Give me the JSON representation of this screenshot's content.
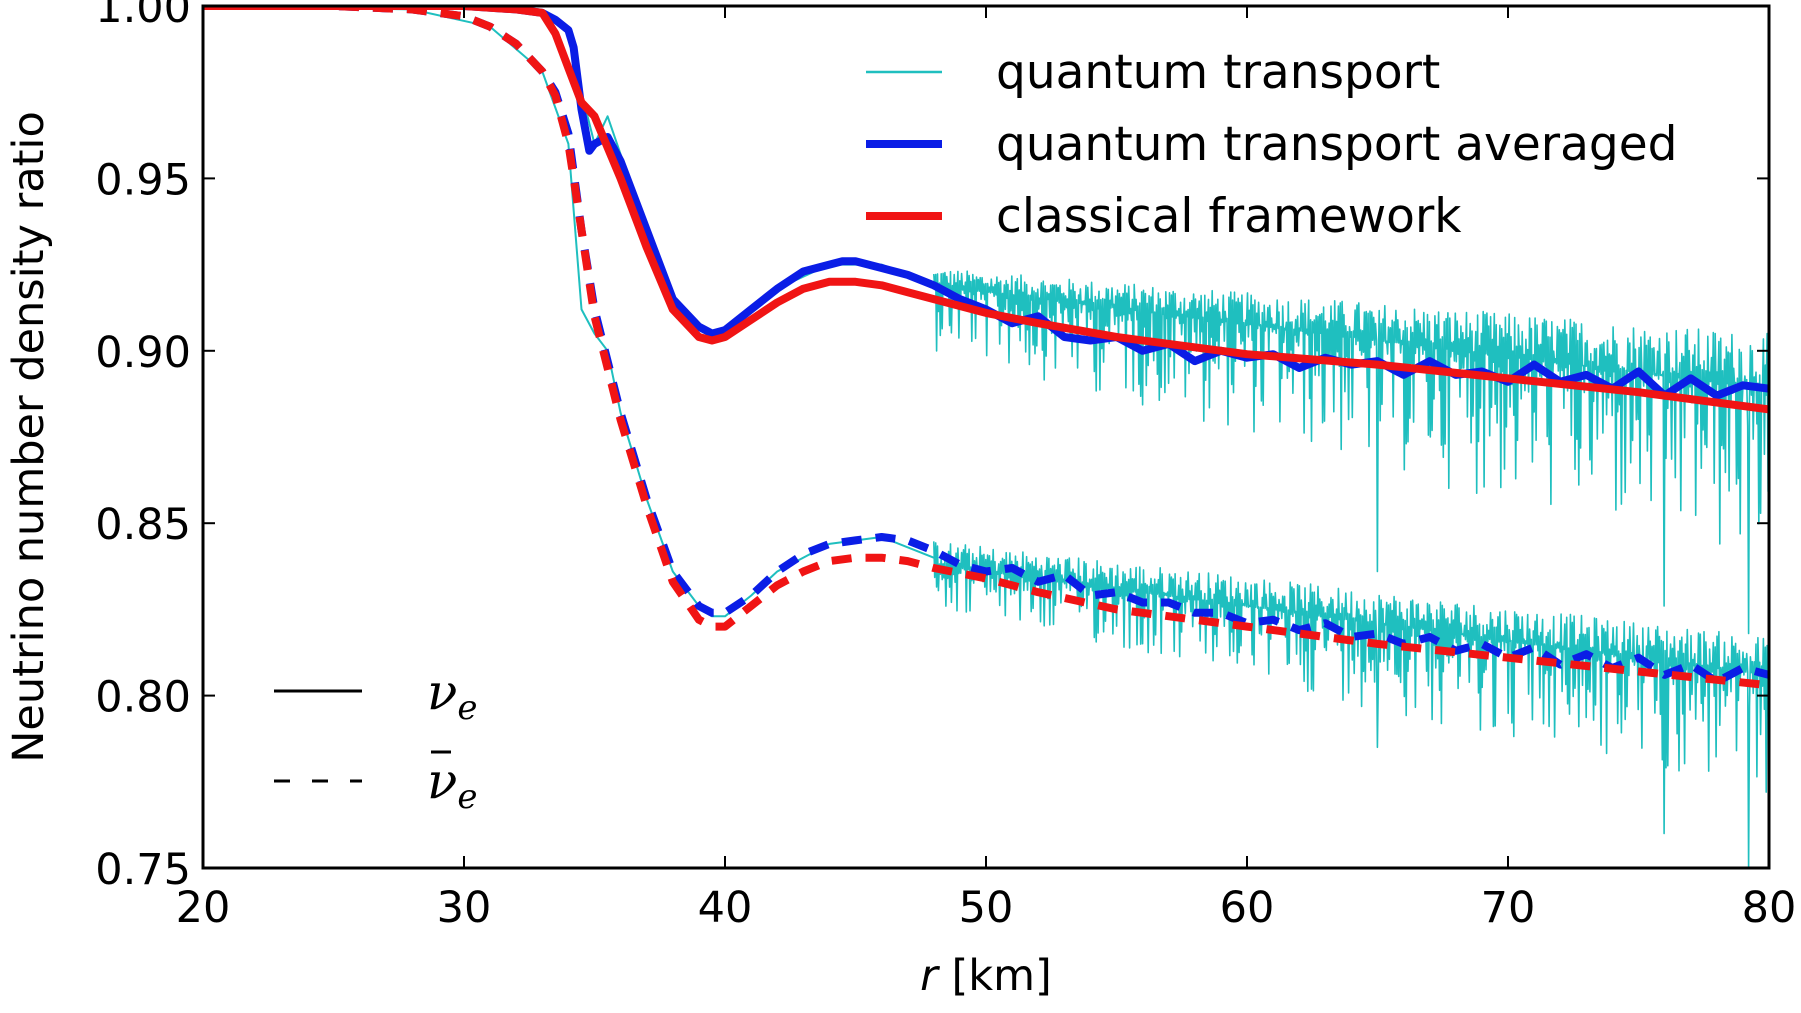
{
  "chart_data": {
    "type": "line",
    "title": "",
    "xlabel_italic": "r",
    "xlabel_rest": " [km]",
    "ylabel": "Neutrino number density ratio",
    "xlim": [
      20,
      80
    ],
    "ylim": [
      0.75,
      1.0
    ],
    "x_ticks": [
      20,
      30,
      40,
      50,
      60,
      70,
      80
    ],
    "y_ticks": [
      0.75,
      0.8,
      0.85,
      0.9,
      0.95,
      1.0
    ],
    "y_tick_labels": [
      "0.75",
      "0.80",
      "0.85",
      "0.90",
      "0.95",
      "1.00"
    ],
    "grid": false,
    "legend_placement": "top-right",
    "legend": [
      {
        "label": "quantum transport",
        "color": "#1fbfbf",
        "style": "thin"
      },
      {
        "label": "quantum transport averaged",
        "color": "#0a1de6",
        "style": "thick"
      },
      {
        "label": "classical framework",
        "color": "#f01414",
        "style": "thick"
      }
    ],
    "style_legend_placement": "bottom-left",
    "style_legend": [
      {
        "label": "ν",
        "sub": "e",
        "bar": false,
        "dash": "solid"
      },
      {
        "label": "ν",
        "sub": "e",
        "bar": true,
        "dash": "dashed"
      }
    ],
    "series": [
      {
        "name": "classical framework ν_e",
        "color": "#f01414",
        "dash": "solid",
        "x": [
          20,
          25,
          30,
          32,
          33,
          33.5,
          34,
          34.5,
          35,
          36,
          37,
          38,
          39,
          39.5,
          40,
          41,
          42,
          43,
          44,
          45,
          46,
          47,
          48,
          50,
          52,
          55,
          60,
          65,
          70,
          75,
          80
        ],
        "y": [
          1.0,
          1.0,
          1.0,
          0.999,
          0.998,
          0.992,
          0.982,
          0.972,
          0.968,
          0.95,
          0.93,
          0.912,
          0.904,
          0.903,
          0.904,
          0.909,
          0.914,
          0.918,
          0.92,
          0.92,
          0.919,
          0.917,
          0.915,
          0.911,
          0.908,
          0.904,
          0.899,
          0.896,
          0.892,
          0.888,
          0.883
        ]
      },
      {
        "name": "classical framework anti-ν_e",
        "color": "#f01414",
        "dash": "dashed",
        "x": [
          20,
          25,
          28,
          30,
          31,
          32,
          33,
          33.5,
          34,
          34.5,
          35,
          35.5,
          36,
          37,
          38,
          39,
          39.5,
          40,
          41,
          42,
          43,
          44,
          45,
          46,
          47,
          48,
          50,
          52,
          55,
          60,
          65,
          70,
          75,
          80
        ],
        "y": [
          1.0,
          1.0,
          0.999,
          0.997,
          0.994,
          0.989,
          0.981,
          0.974,
          0.96,
          0.935,
          0.91,
          0.895,
          0.88,
          0.855,
          0.833,
          0.822,
          0.82,
          0.82,
          0.826,
          0.832,
          0.836,
          0.839,
          0.84,
          0.84,
          0.839,
          0.837,
          0.834,
          0.83,
          0.825,
          0.82,
          0.815,
          0.811,
          0.807,
          0.803
        ]
      },
      {
        "name": "quantum transport averaged ν_e",
        "color": "#0a1de6",
        "dash": "solid",
        "x": [
          20,
          25,
          30,
          32,
          33,
          33.5,
          34,
          34.2,
          34.5,
          34.8,
          35,
          35.5,
          36,
          37,
          38,
          39,
          39.5,
          40,
          41,
          42,
          43,
          44,
          44.5,
          45,
          46,
          47,
          48,
          49,
          50,
          51,
          52,
          53,
          54,
          55,
          56,
          57,
          58,
          59,
          60,
          61,
          62,
          63,
          64,
          65,
          66,
          67,
          68,
          69,
          70,
          71,
          72,
          73,
          74,
          75,
          76,
          77,
          78,
          79,
          80
        ],
        "y": [
          1.0,
          1.0,
          1.0,
          0.999,
          0.998,
          0.996,
          0.993,
          0.988,
          0.97,
          0.958,
          0.96,
          0.962,
          0.955,
          0.935,
          0.915,
          0.907,
          0.905,
          0.906,
          0.912,
          0.918,
          0.923,
          0.925,
          0.926,
          0.926,
          0.924,
          0.922,
          0.919,
          0.915,
          0.912,
          0.908,
          0.91,
          0.904,
          0.903,
          0.904,
          0.9,
          0.902,
          0.897,
          0.9,
          0.898,
          0.899,
          0.895,
          0.898,
          0.896,
          0.897,
          0.893,
          0.897,
          0.893,
          0.894,
          0.891,
          0.896,
          0.891,
          0.893,
          0.889,
          0.894,
          0.887,
          0.892,
          0.887,
          0.89,
          0.889
        ]
      },
      {
        "name": "quantum transport averaged anti-ν_e",
        "color": "#0a1de6",
        "dash": "dashed",
        "x": [
          20,
          25,
          28,
          30,
          31,
          32,
          33,
          33.5,
          34,
          34.5,
          35,
          35.5,
          36,
          37,
          38,
          39,
          39.5,
          40,
          41,
          42,
          43,
          44,
          45,
          46,
          47,
          48,
          49,
          50,
          51,
          52,
          53,
          54,
          55,
          56,
          57,
          58,
          59,
          60,
          61,
          62,
          63,
          64,
          65,
          66,
          67,
          68,
          69,
          70,
          71,
          72,
          73,
          74,
          75,
          76,
          77,
          78,
          79,
          80
        ],
        "y": [
          1.0,
          1.0,
          0.999,
          0.997,
          0.994,
          0.989,
          0.981,
          0.975,
          0.963,
          0.935,
          0.912,
          0.897,
          0.882,
          0.857,
          0.836,
          0.826,
          0.824,
          0.824,
          0.829,
          0.836,
          0.841,
          0.844,
          0.845,
          0.846,
          0.845,
          0.842,
          0.838,
          0.836,
          0.837,
          0.833,
          0.835,
          0.829,
          0.83,
          0.827,
          0.827,
          0.824,
          0.824,
          0.821,
          0.822,
          0.819,
          0.821,
          0.817,
          0.818,
          0.815,
          0.817,
          0.813,
          0.815,
          0.811,
          0.814,
          0.809,
          0.812,
          0.808,
          0.811,
          0.806,
          0.809,
          0.804,
          0.808,
          0.806
        ]
      },
      {
        "name": "quantum transport ν_e",
        "color": "#1fbfbf",
        "dash": "thin",
        "x": [
          20,
          30,
          33,
          34,
          34.5,
          35,
          35.5,
          36,
          37,
          38,
          39,
          39.5,
          40,
          41,
          42,
          44,
          46,
          48
        ],
        "y": [
          1.0,
          1.0,
          0.998,
          0.993,
          0.975,
          0.96,
          0.968,
          0.957,
          0.935,
          0.912,
          0.904,
          0.903,
          0.905,
          0.912,
          0.918,
          0.925,
          0.925,
          0.919
        ]
      },
      {
        "name": "quantum transport anti-ν_e",
        "color": "#1fbfbf",
        "dash": "thin",
        "x": [
          20,
          28,
          31,
          33,
          34,
          34.5,
          35,
          35.5,
          36,
          37,
          38,
          39,
          39.5,
          40,
          41,
          42,
          44,
          46,
          48
        ],
        "y": [
          1.0,
          0.999,
          0.994,
          0.981,
          0.96,
          0.912,
          0.905,
          0.9,
          0.882,
          0.857,
          0.836,
          0.826,
          0.823,
          0.823,
          0.829,
          0.836,
          0.844,
          0.846,
          0.84
        ]
      }
    ],
    "quantum_noise_envelope": [
      {
        "name": "quantum transport ν_e (oscillating)",
        "x_start": 48,
        "x_end": 80,
        "mean_start": 0.919,
        "mean_end": 0.889,
        "upper_start": 0.924,
        "upper_end": 0.905,
        "lower_start": 0.9,
        "lower_end": 0.835,
        "deepest_dips": [
          [
            65,
            0.836
          ],
          [
            76,
            0.826
          ],
          [
            79.2,
            0.818
          ]
        ]
      },
      {
        "name": "quantum transport anti-ν_e (oscillating)",
        "x_start": 48,
        "x_end": 80,
        "mean_start": 0.838,
        "mean_end": 0.806,
        "upper_start": 0.845,
        "upper_end": 0.817,
        "lower_start": 0.825,
        "lower_end": 0.77,
        "deepest_dips": [
          [
            65,
            0.785
          ],
          [
            76,
            0.76
          ],
          [
            79.2,
            0.75
          ]
        ]
      }
    ]
  }
}
